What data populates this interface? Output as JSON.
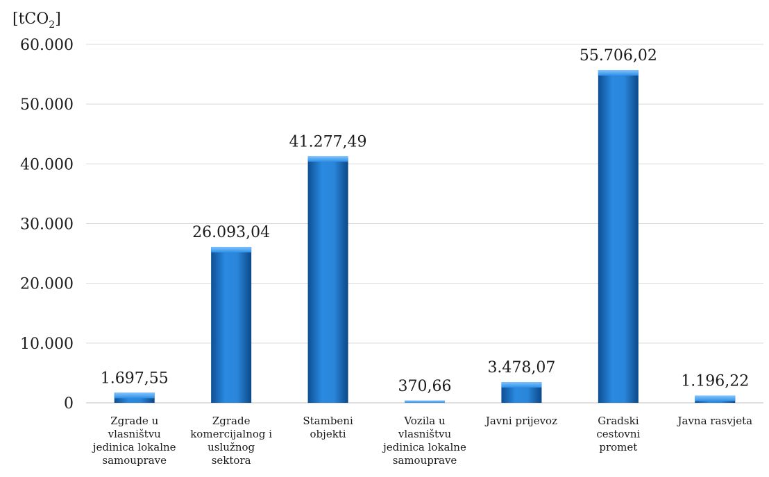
{
  "chart_data": {
    "type": "bar",
    "unit": {
      "prefix": "[tCO",
      "subscript": "2",
      "suffix": "]"
    },
    "categories": [
      [
        "Zgrade u",
        "vlasništvu",
        "jedinica lokalne",
        "samouprave"
      ],
      [
        "Zgrade",
        "komercijalnog i",
        "uslužnog",
        "sektora"
      ],
      [
        "Stambeni",
        "objekti"
      ],
      [
        "Vozila u",
        "vlasništvu",
        "jedinica lokalne",
        "samouprave"
      ],
      [
        "Javni prijevoz"
      ],
      [
        "Gradski",
        "cestovni",
        "promet"
      ],
      [
        "Javna rasvjeta"
      ]
    ],
    "values": [
      1697.55,
      26093.04,
      41277.49,
      370.66,
      3478.07,
      55706.02,
      1196.22
    ],
    "value_labels": [
      "1.697,55",
      "26.093,04",
      "41.277,49",
      "370,66",
      "3.478,07",
      "55.706,02",
      "1.196,22"
    ],
    "ylim": [
      0,
      60000
    ],
    "yticks": [
      0,
      10000,
      20000,
      30000,
      40000,
      50000,
      60000
    ],
    "ytick_labels": [
      "0",
      "10.000",
      "20.000",
      "30.000",
      "40.000",
      "50.000",
      "60.000"
    ],
    "grid": true,
    "legend": false,
    "bar_color": "#1f78c8"
  }
}
